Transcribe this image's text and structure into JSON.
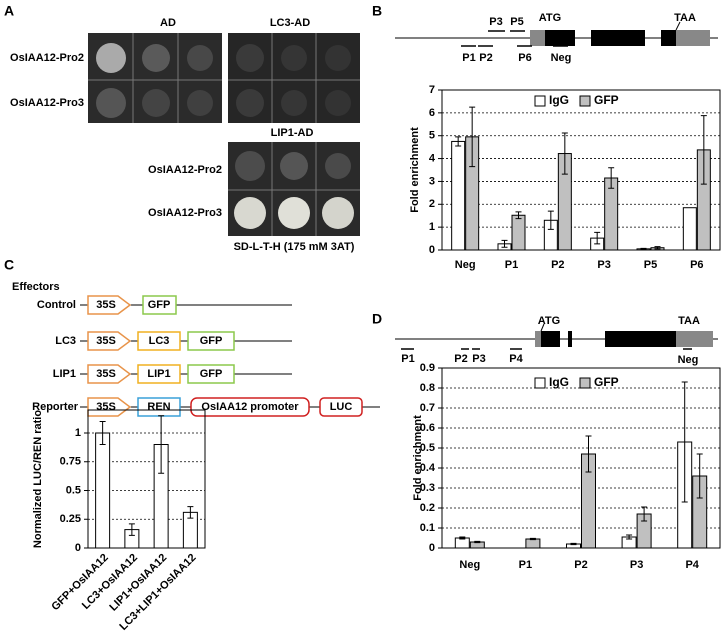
{
  "panel_labels": [
    "A",
    "B",
    "C",
    "D"
  ],
  "panel_a": {
    "top_columns": [
      "AD",
      "LC3-AD"
    ],
    "top_rows": [
      "OsIAA12-Pro2",
      "OsIAA12-Pro3"
    ],
    "bottom_column": "LIP1-AD",
    "bottom_rows": [
      "OsIAA12-Pro2",
      "OsIAA12-Pro3"
    ],
    "medium": "SD-L-T-H (175 mM 3AT)"
  },
  "diagram_b": {
    "start": "ATG",
    "stop": "TAA",
    "primers": [
      "P3",
      "P5",
      "P1",
      "P2",
      "P6",
      "Neg"
    ]
  },
  "diagram_c": {
    "effectors": "Effectors",
    "rows": [
      "Control",
      "LC3",
      "LIP1",
      "Reporter"
    ],
    "promoter": "35S",
    "boxes": [
      "GFP",
      "LC3",
      "LIP1",
      "REN",
      "OsIAA12 promoter",
      "LUC"
    ]
  },
  "diagram_d": {
    "start": "ATG",
    "stop": "TAA",
    "primers": [
      "P1",
      "P2",
      "P3",
      "P4",
      "Neg"
    ]
  },
  "chart_data": [
    {
      "type": "bar",
      "y_label": "Fold enrichment",
      "categories": [
        "Neg",
        "P1",
        "P2",
        "P3",
        "P5",
        "P6"
      ],
      "series": [
        {
          "name": "IgG",
          "color": "#ffffff",
          "values": [
            4.75,
            0.27,
            1.3,
            0.52,
            0.05,
            1.85
          ],
          "errors": [
            0.2,
            0.15,
            0.4,
            0.25,
            0.02,
            null
          ]
        },
        {
          "name": "GFP",
          "color": "#c0c0c0",
          "values": [
            4.95,
            1.52,
            4.22,
            3.15,
            0.1,
            4.38
          ],
          "errors": [
            1.3,
            0.15,
            0.9,
            0.45,
            0.05,
            1.5
          ]
        }
      ],
      "ylim": [
        0,
        7
      ],
      "yticks": [
        0,
        1,
        2,
        3,
        4,
        5,
        6,
        7
      ],
      "grid": true,
      "legend": "top"
    },
    {
      "type": "bar",
      "y_label": "Normalized LUC/REN ratio",
      "categories": [
        "GFP+OsIAA12",
        "LC3+OsIAA12",
        "LIP1+OsIAA12",
        "LC3+LIP1+OsIAA12"
      ],
      "values": [
        1,
        0.16,
        0.9,
        0.31
      ],
      "errors": [
        0.1,
        0.05,
        0.25,
        0.05
      ],
      "color": "#ffffff",
      "ylim": [
        0,
        1.2
      ],
      "yticks": [
        0,
        0.25,
        0.5,
        0.75,
        1
      ],
      "grid": true
    },
    {
      "type": "bar",
      "y_label": "Fold enrichment",
      "categories": [
        "Neg",
        "P1",
        "P2",
        "P3",
        "P4"
      ],
      "series": [
        {
          "name": "IgG",
          "color": "#ffffff",
          "values": [
            0.05,
            0,
            0.02,
            0.055,
            0.53
          ],
          "errors": [
            0.005,
            null,
            0.003,
            0.01,
            0.3
          ]
        },
        {
          "name": "GFP",
          "color": "#c0c0c0",
          "values": [
            0.03,
            0.045,
            0.47,
            0.17,
            0.36
          ],
          "errors": [
            0.003,
            0.003,
            0.09,
            0.035,
            0.11
          ]
        }
      ],
      "ylim": [
        0,
        0.9
      ],
      "yticks": [
        0,
        0.1,
        0.2,
        0.3,
        0.4,
        0.5,
        0.6,
        0.7,
        0.8,
        0.9
      ],
      "grid": true,
      "legend": "top"
    }
  ]
}
